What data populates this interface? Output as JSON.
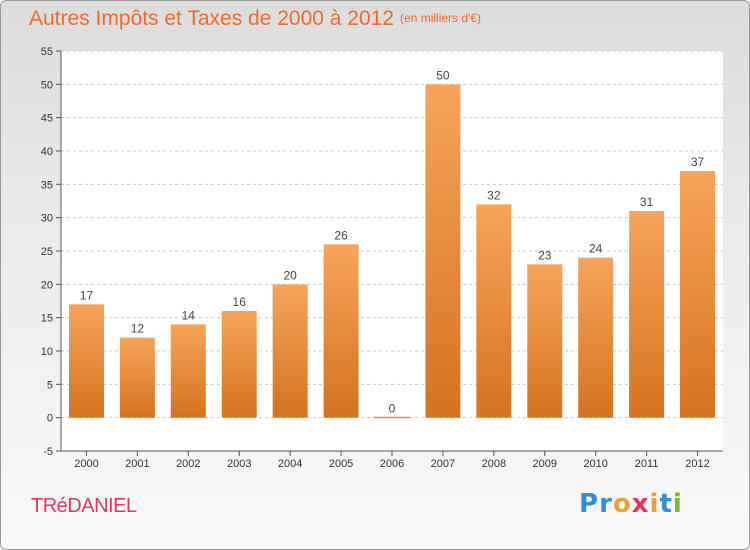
{
  "header": {
    "title": "Autres Impôts et Taxes de 2000 à 2012",
    "subtitle": "(en milliers d'€)"
  },
  "footer": {
    "commune": "TRéDANIEL",
    "brand": "Proxiti"
  },
  "colors": {
    "title": "#ec6b2d",
    "commune": "#e2375b",
    "bar_top": "#f6a45a",
    "bar_bottom": "#d5731f",
    "grid": "#c8c8c8",
    "axis": "#555555",
    "logo": [
      "#2f8fd8",
      "#2f8fd8",
      "#f0a030",
      "#e2375b",
      "#f0a030",
      "#2f8fd8",
      "#7ab733"
    ]
  },
  "chart_data": {
    "type": "bar",
    "categories": [
      "2000",
      "2001",
      "2002",
      "2003",
      "2004",
      "2005",
      "2006",
      "2007",
      "2008",
      "2009",
      "2010",
      "2011",
      "2012"
    ],
    "values": [
      17,
      12,
      14,
      16,
      20,
      26,
      0,
      50,
      32,
      23,
      24,
      31,
      37
    ],
    "data_labels": [
      "17",
      "12",
      "14",
      "16",
      "20",
      "26",
      "0",
      "50",
      "32",
      "23",
      "24",
      "31",
      "37"
    ],
    "ylim": [
      -5,
      55
    ],
    "yticks": [
      -5,
      0,
      5,
      10,
      15,
      20,
      25,
      30,
      35,
      40,
      45,
      50,
      55
    ],
    "grid": "horizontal dashed",
    "legend": "none"
  }
}
